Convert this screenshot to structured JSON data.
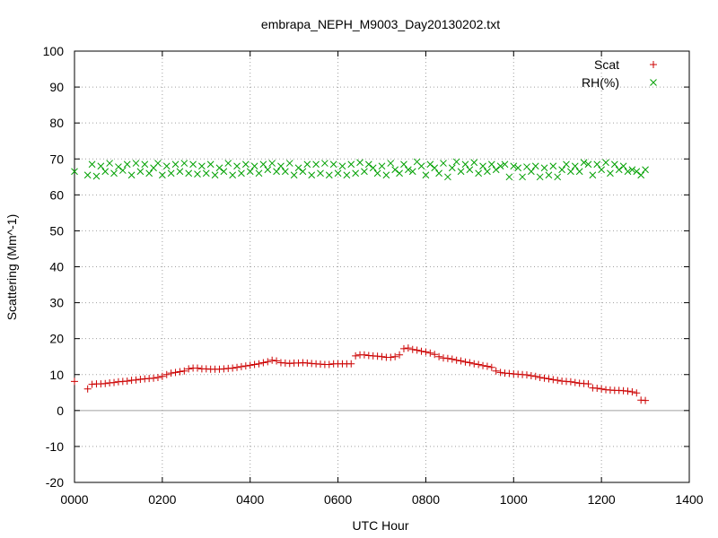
{
  "chart_data": {
    "type": "scatter",
    "title": "embrapa_NEPH_M9003_Day20130202.txt",
    "xlabel": "UTC Hour",
    "ylabel": "Scattering (Mm^-1)",
    "xlim": [
      0,
      1400
    ],
    "ylim": [
      -20,
      100
    ],
    "xticks": [
      0,
      200,
      400,
      600,
      800,
      1000,
      1200,
      1400
    ],
    "xtick_labels": [
      "0000",
      "0200",
      "0400",
      "0600",
      "0800",
      "1000",
      "1200",
      "1400"
    ],
    "yticks": [
      -20,
      -10,
      0,
      10,
      20,
      30,
      40,
      50,
      60,
      70,
      80,
      90,
      100
    ],
    "ytick_labels": [
      "-20",
      "-10",
      "0",
      "10",
      "20",
      "30",
      "40",
      "50",
      "60",
      "70",
      "80",
      "90",
      "100"
    ],
    "grid": true,
    "legend_position": "top-right",
    "series": [
      {
        "name": "Scat",
        "marker": "+",
        "color": "#cc0000",
        "x": [
          0,
          30,
          40,
          50,
          60,
          70,
          80,
          90,
          100,
          110,
          120,
          130,
          140,
          150,
          160,
          170,
          180,
          190,
          200,
          210,
          220,
          230,
          240,
          250,
          260,
          270,
          280,
          290,
          300,
          310,
          320,
          330,
          340,
          350,
          360,
          370,
          380,
          390,
          400,
          410,
          420,
          430,
          440,
          450,
          460,
          470,
          480,
          490,
          500,
          510,
          520,
          530,
          540,
          550,
          560,
          570,
          580,
          590,
          600,
          610,
          620,
          630,
          640,
          650,
          660,
          670,
          680,
          690,
          700,
          710,
          720,
          730,
          740,
          750,
          760,
          770,
          780,
          790,
          800,
          810,
          820,
          830,
          840,
          850,
          860,
          870,
          880,
          890,
          900,
          910,
          920,
          930,
          940,
          950,
          960,
          970,
          980,
          990,
          1000,
          1010,
          1020,
          1030,
          1040,
          1050,
          1060,
          1070,
          1080,
          1090,
          1100,
          1110,
          1120,
          1130,
          1140,
          1150,
          1160,
          1170,
          1180,
          1190,
          1200,
          1210,
          1220,
          1230,
          1240,
          1250,
          1260,
          1270,
          1280,
          1290,
          1300
        ],
        "y": [
          8.1,
          6.0,
          7.3,
          7.4,
          7.4,
          7.5,
          7.7,
          7.8,
          8.0,
          8.1,
          8.2,
          8.4,
          8.5,
          8.7,
          8.8,
          8.9,
          9.0,
          9.2,
          9.5,
          10.0,
          10.4,
          10.6,
          10.8,
          11.0,
          11.6,
          11.8,
          11.8,
          11.6,
          11.6,
          11.5,
          11.5,
          11.5,
          11.6,
          11.7,
          11.8,
          12.0,
          12.2,
          12.4,
          12.6,
          12.8,
          13.0,
          13.3,
          13.6,
          14.0,
          13.8,
          13.3,
          13.2,
          13.1,
          13.2,
          13.2,
          13.3,
          13.2,
          13.1,
          13.0,
          12.9,
          12.8,
          12.8,
          13.0,
          13.0,
          13.0,
          13.0,
          13.0,
          15.2,
          15.5,
          15.5,
          15.3,
          15.2,
          15.1,
          15.0,
          14.8,
          14.8,
          15.0,
          15.5,
          17.2,
          17.4,
          17.0,
          16.8,
          16.5,
          16.3,
          16.0,
          15.6,
          15.0,
          14.6,
          14.5,
          14.3,
          14.0,
          13.8,
          13.5,
          13.3,
          13.0,
          12.8,
          12.5,
          12.3,
          12.0,
          11.0,
          10.6,
          10.4,
          10.3,
          10.2,
          10.1,
          10.0,
          9.9,
          9.7,
          9.5,
          9.2,
          9.0,
          8.8,
          8.6,
          8.4,
          8.2,
          8.1,
          8.0,
          7.8,
          7.6,
          7.5,
          7.4,
          6.3,
          6.2,
          6.0,
          5.8,
          5.7,
          5.6,
          5.6,
          5.5,
          5.4,
          5.2,
          4.9,
          2.9,
          2.8
        ]
      },
      {
        "name": "RH(%)",
        "marker": "x",
        "color": "#00a000",
        "x": [
          0,
          30,
          40,
          50,
          60,
          70,
          80,
          90,
          100,
          110,
          120,
          130,
          140,
          150,
          160,
          170,
          180,
          190,
          200,
          210,
          220,
          230,
          240,
          250,
          260,
          270,
          280,
          290,
          300,
          310,
          320,
          330,
          340,
          350,
          360,
          370,
          380,
          390,
          400,
          410,
          420,
          430,
          440,
          450,
          460,
          470,
          480,
          490,
          500,
          510,
          520,
          530,
          540,
          550,
          560,
          570,
          580,
          590,
          600,
          610,
          620,
          630,
          640,
          650,
          660,
          670,
          680,
          690,
          700,
          710,
          720,
          730,
          740,
          750,
          760,
          770,
          780,
          790,
          800,
          810,
          820,
          830,
          840,
          850,
          860,
          870,
          880,
          890,
          900,
          910,
          920,
          930,
          940,
          950,
          960,
          970,
          980,
          990,
          1000,
          1010,
          1020,
          1030,
          1040,
          1050,
          1060,
          1070,
          1080,
          1090,
          1100,
          1110,
          1120,
          1130,
          1140,
          1150,
          1160,
          1170,
          1180,
          1190,
          1200,
          1210,
          1220,
          1230,
          1240,
          1250,
          1260,
          1270,
          1280,
          1290,
          1300
        ],
        "y": [
          66.5,
          65.5,
          68.5,
          65.2,
          68.0,
          66.5,
          68.8,
          66.0,
          67.8,
          66.8,
          68.5,
          65.5,
          68.8,
          66.5,
          68.5,
          66.0,
          67.5,
          68.8,
          65.5,
          68.0,
          66.0,
          68.5,
          66.5,
          68.8,
          66.0,
          68.5,
          65.8,
          68.0,
          66.0,
          68.5,
          65.5,
          67.5,
          66.5,
          68.8,
          65.5,
          68.0,
          66.0,
          68.5,
          66.5,
          68.0,
          66.0,
          68.5,
          67.0,
          68.8,
          66.5,
          68.0,
          66.5,
          68.8,
          65.5,
          67.5,
          66.5,
          68.5,
          65.5,
          68.5,
          66.0,
          68.8,
          65.5,
          68.5,
          66.0,
          68.0,
          65.5,
          68.5,
          66.0,
          69.0,
          66.5,
          68.5,
          67.5,
          66.0,
          68.0,
          65.5,
          68.8,
          67.0,
          66.0,
          68.5,
          67.0,
          66.5,
          69.2,
          68.0,
          65.5,
          68.5,
          67.5,
          66.0,
          68.8,
          65.0,
          67.5,
          69.2,
          66.5,
          68.5,
          67.0,
          69.0,
          66.0,
          68.0,
          66.5,
          68.5,
          67.0,
          68.0,
          68.5,
          65.0,
          68.0,
          67.5,
          65.0,
          67.8,
          66.5,
          68.0,
          65.0,
          67.5,
          65.5,
          68.0,
          65.0,
          67.0,
          68.5,
          66.5,
          68.0,
          66.5,
          69.0,
          68.5,
          65.5,
          68.5,
          67.0,
          69.0,
          66.0,
          68.5,
          67.0,
          68.0,
          66.5,
          67.0,
          66.5,
          65.5,
          67.0
        ]
      }
    ]
  }
}
